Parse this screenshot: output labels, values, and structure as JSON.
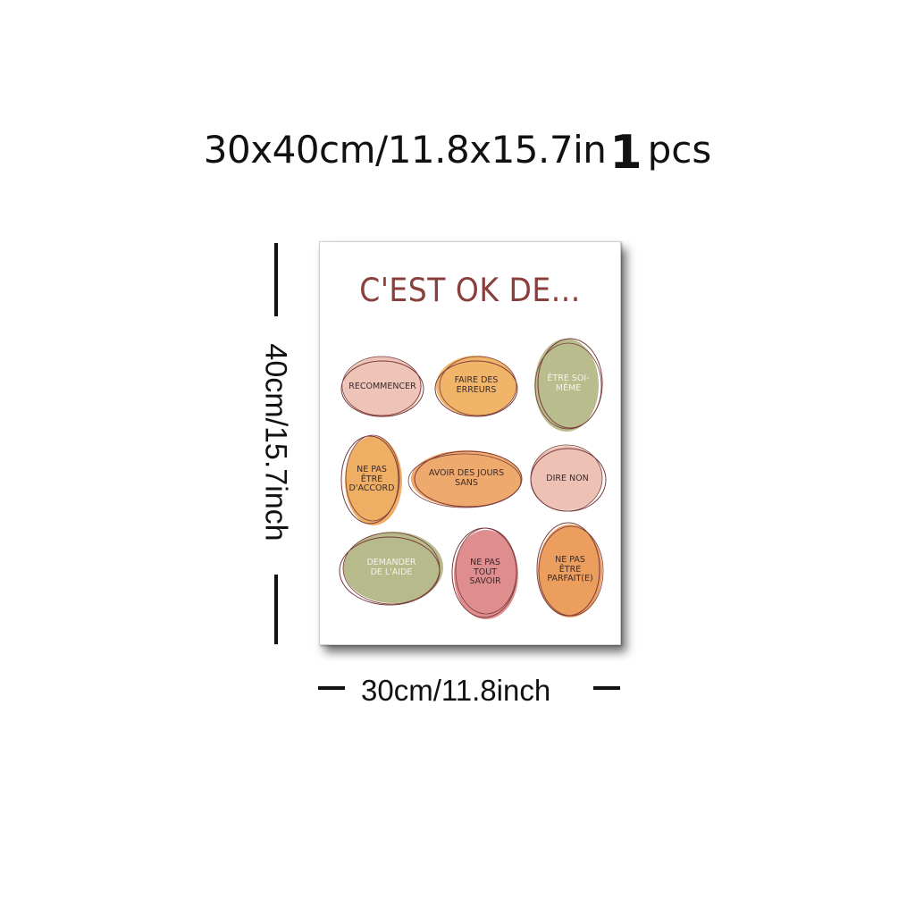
{
  "header": {
    "size": "30x40cm/11.8x15.7in",
    "quantity": "1",
    "quantity_unit": "pcs"
  },
  "poster": {
    "title": "C'EST OK DE...",
    "items": [
      {
        "label": "RECOMMENCER",
        "color": "#eec4b8"
      },
      {
        "label": "FAIRE DES ERREURS",
        "color": "#f1b56a"
      },
      {
        "label": "ÊTRE SOI-MÊME",
        "color": "#b9bd8e"
      },
      {
        "label": "NE PAS ÊTRE D'ACCORD",
        "color": "#eeae63"
      },
      {
        "label": "AVOIR DES JOURS SANS",
        "color": "#eea96d"
      },
      {
        "label": "DIRE NON",
        "color": "#edc2b5"
      },
      {
        "label": "DEMANDER DE L'AIDE",
        "color": "#b7bb8c"
      },
      {
        "label": "NE PAS TOUT SAVOIR",
        "color": "#df8d8e"
      },
      {
        "label": "NE PAS ÊTRE PARFAIT(E)",
        "color": "#ec9e5f"
      }
    ]
  },
  "dimensions": {
    "height_label": "40cm/15.7inch",
    "width_label": "30cm/11.8inch"
  }
}
